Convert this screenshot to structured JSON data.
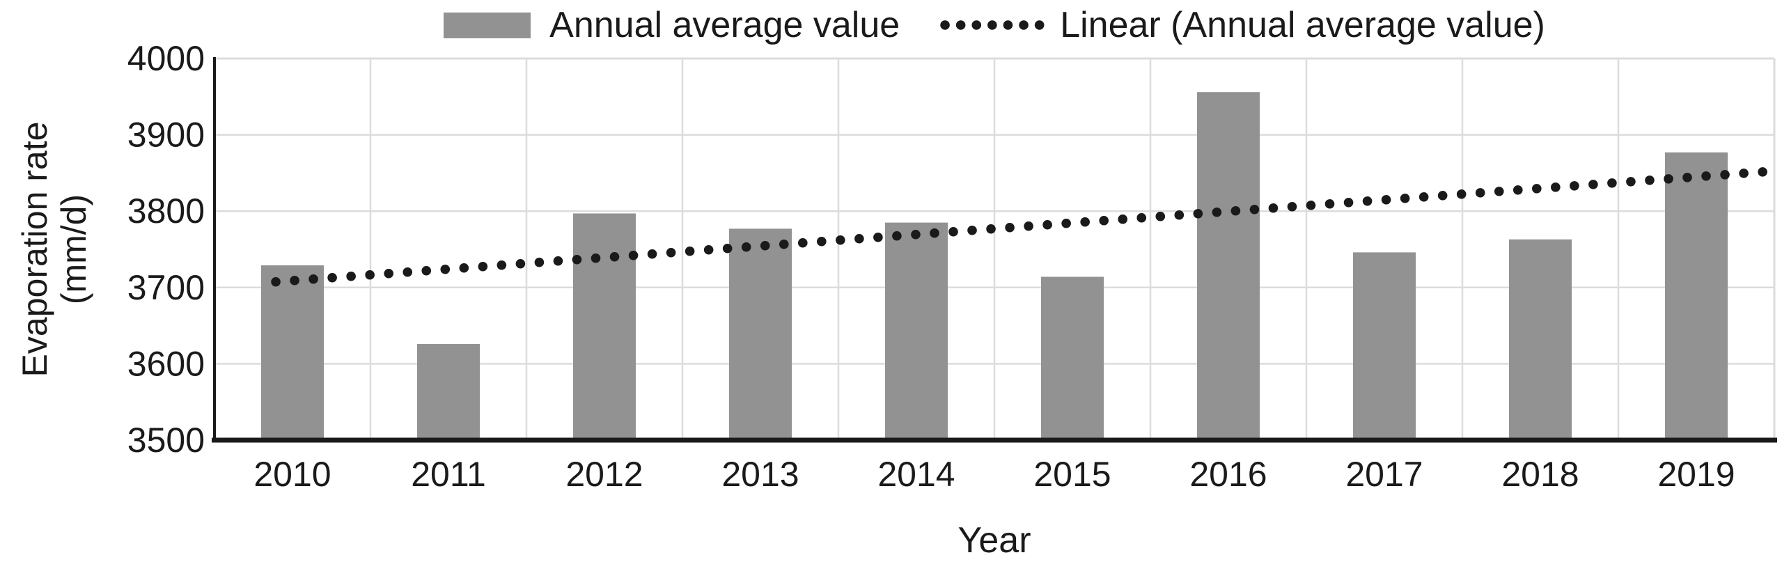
{
  "legend": {
    "series_label": "Annual average value",
    "trend_label": "Linear (Annual average value)"
  },
  "axes": {
    "y_title_line1": "Evaporation rate",
    "y_title_line2": "(mm/d)",
    "x_title": "Year",
    "y_tick_labels": [
      "4000",
      "3900",
      "3800",
      "3700",
      "3600",
      "3500"
    ]
  },
  "chart_data": {
    "type": "bar",
    "categories": [
      "2010",
      "2011",
      "2012",
      "2013",
      "2014",
      "2015",
      "2016",
      "2017",
      "2018",
      "2019"
    ],
    "series": [
      {
        "name": "Annual average value",
        "type": "bar",
        "values": [
          3729,
          3626,
          3797,
          3777,
          3785,
          3714,
          3956,
          3746,
          3763,
          3877
        ]
      },
      {
        "name": "Linear (Annual average value)",
        "type": "line",
        "style": "dotted",
        "values": [
          3709,
          3724,
          3739,
          3754,
          3769,
          3785,
          3800,
          3815,
          3830,
          3845
        ]
      }
    ],
    "title": "",
    "xlabel": "Year",
    "ylabel": "Evaporation rate (mm/d)",
    "ylim": [
      3500,
      4000
    ],
    "y_tick_step": 100,
    "grid": true,
    "legend_position": "top",
    "colors": {
      "bar": "#929292",
      "trend": "#1a1a1a",
      "gridline": "#dcdcdc",
      "axis": "#1a1a1a",
      "text": "#1a1a1a"
    }
  }
}
